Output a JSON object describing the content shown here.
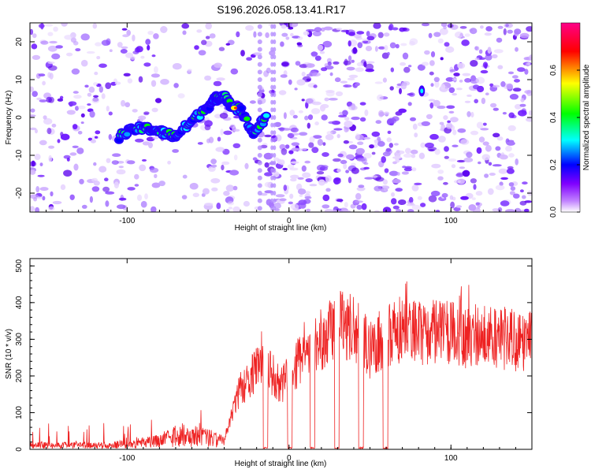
{
  "title": "S196.2026.058.13.41.R17",
  "chart_data": [
    {
      "type": "heatmap",
      "xlabel": "Height of straight line (km)",
      "ylabel": "Frequency (Hz)",
      "xlim": [
        -160,
        150
      ],
      "ylim": [
        -25,
        25
      ],
      "x_ticks": [
        -100,
        0,
        100
      ],
      "y_ticks": [
        -20,
        -10,
        0,
        10,
        20
      ],
      "colorbar": {
        "label": "Normalized spectral amplitude",
        "range": [
          0.0,
          0.8
        ],
        "ticks": [
          "0.0",
          "0.2",
          "0.4",
          "0.6"
        ],
        "colors": [
          "#ffffff",
          "#8800ff",
          "#0000ff",
          "#00ffff",
          "#00ff00",
          "#ffff00",
          "#ff0000",
          "#ff0088"
        ]
      },
      "signal_track": [
        {
          "x": -105,
          "y": -5
        },
        {
          "x": -95,
          "y": -3
        },
        {
          "x": -85,
          "y": -3
        },
        {
          "x": -78,
          "y": -4
        },
        {
          "x": -70,
          "y": -5
        },
        {
          "x": -60,
          "y": -1
        },
        {
          "x": -50,
          "y": 3
        },
        {
          "x": -45,
          "y": 5
        },
        {
          "x": -40,
          "y": 6
        },
        {
          "x": -36,
          "y": 3
        },
        {
          "x": -30,
          "y": 2
        },
        {
          "x": -22,
          "y": -4
        },
        {
          "x": -14,
          "y": 0
        },
        {
          "x": 82,
          "y": 7
        }
      ]
    },
    {
      "type": "line",
      "xlabel": "Height of straight line (km)",
      "ylabel": "SNR (10 * v/v)",
      "xlim": [
        -160,
        150
      ],
      "ylim": [
        0,
        520
      ],
      "x_ticks": [
        -100,
        0,
        100
      ],
      "y_ticks": [
        0,
        100,
        200,
        300,
        400,
        500
      ],
      "series_color": "#ee2222",
      "envelope": [
        {
          "x": -160,
          "y": 20
        },
        {
          "x": -110,
          "y": 20
        },
        {
          "x": -80,
          "y": 40
        },
        {
          "x": -70,
          "y": 70
        },
        {
          "x": -50,
          "y": 60
        },
        {
          "x": -40,
          "y": 35
        },
        {
          "x": -35,
          "y": 120
        },
        {
          "x": -30,
          "y": 220
        },
        {
          "x": -25,
          "y": 240
        },
        {
          "x": -18,
          "y": 300
        },
        {
          "x": -10,
          "y": 260
        },
        {
          "x": -5,
          "y": 220
        },
        {
          "x": 5,
          "y": 300
        },
        {
          "x": 15,
          "y": 360
        },
        {
          "x": 20,
          "y": 380
        },
        {
          "x": 30,
          "y": 440
        },
        {
          "x": 40,
          "y": 420
        },
        {
          "x": 50,
          "y": 350
        },
        {
          "x": 60,
          "y": 400
        },
        {
          "x": 70,
          "y": 420
        },
        {
          "x": 90,
          "y": 410
        },
        {
          "x": 110,
          "y": 400
        },
        {
          "x": 130,
          "y": 390
        },
        {
          "x": 150,
          "y": 380
        }
      ],
      "dropouts": [
        {
          "x0": -16,
          "x1": -13
        },
        {
          "x0": -1,
          "x1": 2
        },
        {
          "x0": 13,
          "x1": 16
        },
        {
          "x0": 28,
          "x1": 31
        },
        {
          "x0": 43,
          "x1": 46
        },
        {
          "x0": 58,
          "x1": 61
        }
      ]
    }
  ]
}
